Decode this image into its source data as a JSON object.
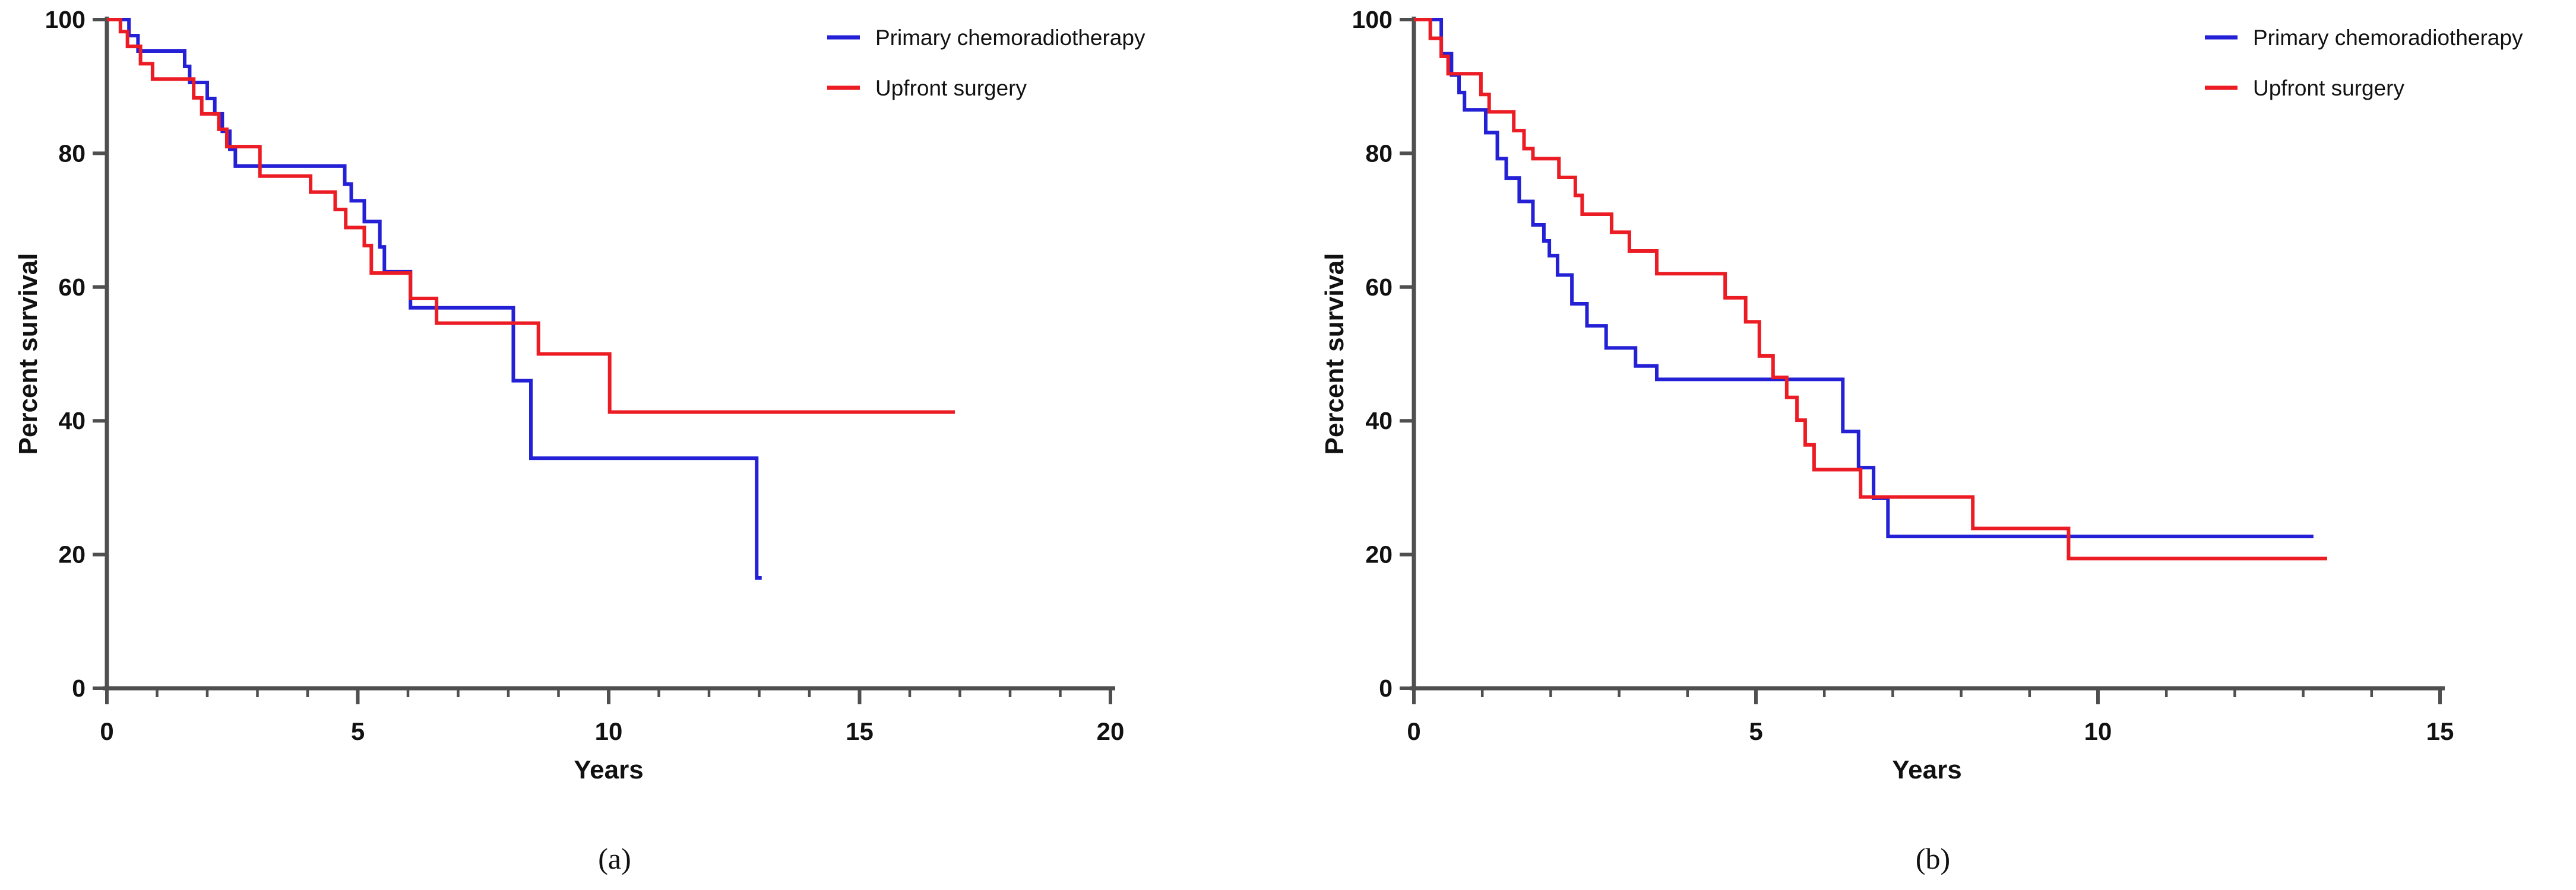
{
  "figure": {
    "background": "#ffffff",
    "axis_color": "#4f4f4f",
    "text_color": "#111111"
  },
  "chart_data": [
    {
      "type": "line",
      "step": true,
      "id": "a",
      "caption": "(a)",
      "xlabel": "Years",
      "ylabel": "Percent survival",
      "xlim": [
        0,
        20
      ],
      "ylim": [
        0,
        100
      ],
      "x_major_ticks": [
        0,
        5,
        10,
        15,
        20
      ],
      "x_minor_step": 1,
      "y_ticks": [
        0,
        20,
        40,
        60,
        80,
        100
      ],
      "grid": false,
      "legend_position": "upper right",
      "legend": [
        {
          "label": "Primary chemoradiotherapy",
          "color": "#2320d5"
        },
        {
          "label": "Upfront surgery",
          "color": "#ec1c24"
        }
      ],
      "series": [
        {
          "name": "Primary chemoradiotherapy",
          "color": "#2320d5",
          "start_pct": 100,
          "end_x": 13.05,
          "steps": [
            [
              0.44,
              97.6
            ],
            [
              0.62,
              95.3
            ],
            [
              1.55,
              93.0
            ],
            [
              1.65,
              90.6
            ],
            [
              2.0,
              88.2
            ],
            [
              2.15,
              85.9
            ],
            [
              2.3,
              83.3
            ],
            [
              2.45,
              80.6
            ],
            [
              2.56,
              78.1
            ],
            [
              4.74,
              75.4
            ],
            [
              4.87,
              72.9
            ],
            [
              5.13,
              69.8
            ],
            [
              5.44,
              66.0
            ],
            [
              5.53,
              62.3
            ],
            [
              6.05,
              56.9
            ],
            [
              8.1,
              46.0
            ],
            [
              8.45,
              34.4
            ],
            [
              12.95,
              16.5
            ]
          ]
        },
        {
          "name": "Upfront surgery",
          "color": "#ec1c24",
          "start_pct": 100,
          "end_x": 16.9,
          "steps": [
            [
              0.27,
              98.2
            ],
            [
              0.41,
              96.0
            ],
            [
              0.67,
              93.4
            ],
            [
              0.91,
              91.1
            ],
            [
              1.73,
              88.3
            ],
            [
              1.89,
              85.9
            ],
            [
              2.23,
              83.6
            ],
            [
              2.39,
              81.0
            ],
            [
              3.05,
              76.6
            ],
            [
              4.06,
              74.2
            ],
            [
              4.55,
              71.6
            ],
            [
              4.76,
              68.9
            ],
            [
              5.13,
              66.2
            ],
            [
              5.27,
              62.1
            ],
            [
              6.05,
              58.3
            ],
            [
              6.57,
              54.6
            ],
            [
              8.6,
              50.0
            ],
            [
              10.02,
              41.3
            ]
          ]
        }
      ]
    },
    {
      "type": "line",
      "step": true,
      "id": "b",
      "caption": "(b)",
      "xlabel": "Years",
      "ylabel": "Percent survival",
      "xlim": [
        0,
        15
      ],
      "ylim": [
        0,
        100
      ],
      "x_major_ticks": [
        0,
        5,
        10,
        15
      ],
      "x_minor_step": 1,
      "y_ticks": [
        0,
        20,
        40,
        60,
        80,
        100
      ],
      "grid": false,
      "legend_position": "upper right",
      "legend": [
        {
          "label": "Primary chemoradiotherapy",
          "color": "#2320d5"
        },
        {
          "label": "Upfront surgery",
          "color": "#ec1c24"
        }
      ],
      "series": [
        {
          "name": "Primary chemoradiotherapy",
          "color": "#2320d5",
          "start_pct": 100,
          "end_x": 13.15,
          "steps": [
            [
              0.4,
              94.9
            ],
            [
              0.55,
              91.7
            ],
            [
              0.66,
              89.1
            ],
            [
              0.74,
              86.5
            ],
            [
              1.05,
              83.1
            ],
            [
              1.22,
              79.2
            ],
            [
              1.35,
              76.3
            ],
            [
              1.54,
              72.8
            ],
            [
              1.74,
              69.3
            ],
            [
              1.9,
              66.9
            ],
            [
              1.98,
              64.7
            ],
            [
              2.1,
              61.8
            ],
            [
              2.31,
              57.5
            ],
            [
              2.53,
              54.2
            ],
            [
              2.81,
              50.9
            ],
            [
              3.24,
              48.2
            ],
            [
              3.55,
              46.2
            ],
            [
              6.27,
              38.4
            ],
            [
              6.5,
              33.0
            ],
            [
              6.72,
              28.4
            ],
            [
              6.93,
              22.7
            ]
          ]
        },
        {
          "name": "Upfront surgery",
          "color": "#ec1c24",
          "start_pct": 100,
          "end_x": 13.35,
          "steps": [
            [
              0.24,
              97.2
            ],
            [
              0.4,
              94.5
            ],
            [
              0.5,
              91.9
            ],
            [
              0.98,
              88.8
            ],
            [
              1.1,
              86.2
            ],
            [
              1.46,
              83.4
            ],
            [
              1.61,
              80.7
            ],
            [
              1.74,
              79.2
            ],
            [
              2.12,
              76.4
            ],
            [
              2.36,
              73.7
            ],
            [
              2.46,
              70.9
            ],
            [
              2.89,
              68.2
            ],
            [
              3.15,
              65.4
            ],
            [
              3.55,
              62.0
            ],
            [
              4.55,
              58.4
            ],
            [
              4.85,
              54.8
            ],
            [
              5.05,
              49.7
            ],
            [
              5.25,
              46.5
            ],
            [
              5.45,
              43.5
            ],
            [
              5.6,
              40.1
            ],
            [
              5.72,
              36.4
            ],
            [
              5.85,
              32.7
            ],
            [
              6.53,
              28.6
            ],
            [
              8.17,
              23.9
            ],
            [
              9.57,
              19.4
            ]
          ]
        }
      ]
    }
  ]
}
